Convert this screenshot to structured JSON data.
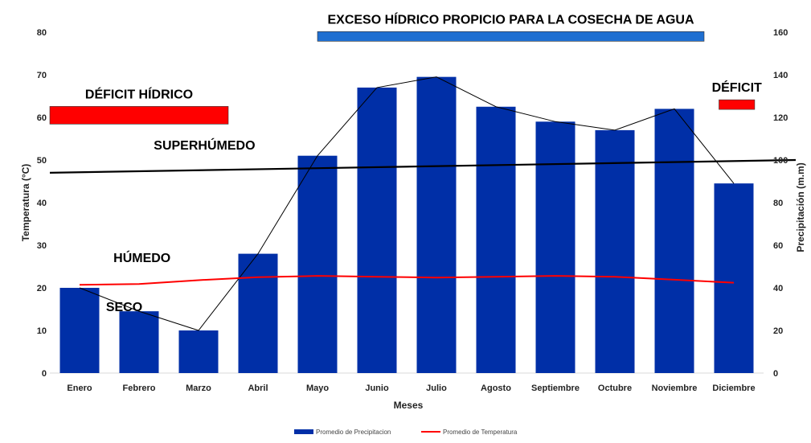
{
  "chart_data": {
    "type": "bar",
    "categories": [
      "Enero",
      "Febrero",
      "Marzo",
      "Abril",
      "Mayo",
      "Junio",
      "Julio",
      "Agosto",
      "Septiembre",
      "Octubre",
      "Noviembre",
      "Diciembre"
    ],
    "series": [
      {
        "name": "Promedio de Precipitacion",
        "kind": "bar",
        "axis": "right",
        "values": [
          40,
          29,
          20,
          56,
          102,
          134,
          139,
          125,
          118,
          114,
          124,
          89
        ]
      },
      {
        "name": "Promedio de Temperatura",
        "kind": "line",
        "axis": "left",
        "values": [
          20.7,
          20.9,
          21.8,
          22.5,
          22.8,
          22.6,
          22.4,
          22.6,
          22.8,
          22.6,
          21.9,
          21.2
        ]
      },
      {
        "name": "",
        "kind": "thin-line",
        "axis": "right",
        "values": [
          40,
          29,
          20,
          56,
          102,
          134,
          139,
          125,
          118,
          114,
          124,
          89
        ]
      }
    ],
    "xlabel": "Meses",
    "ylabel_left": "Temperatura (°C)",
    "ylabel_right": "Precipitación (m.m)",
    "ylim_left": [
      0,
      80
    ],
    "ylim_right": [
      0,
      160
    ],
    "ticks_left": [
      "0",
      "10",
      "20",
      "30",
      "40",
      "50",
      "60",
      "70",
      "80"
    ],
    "ticks_right": [
      "0",
      "20",
      "40",
      "60",
      "80",
      "100",
      "120",
      "140",
      "160"
    ],
    "reference_line": {
      "axis": "right",
      "start": 94,
      "end": 100
    },
    "ranges": [
      {
        "label": "EXCESO HÍDRICO PROPICIO PARA LA COSECHA DE AGUA",
        "color": "#1F6FD1",
        "from": 4.0,
        "to": 10.5,
        "level": 79,
        "level_axis": "left"
      },
      {
        "label": "DÉFICIT HÍDRICO",
        "color": "#FF0000",
        "from": -0.5,
        "to": 2.5,
        "level": 60.5,
        "level_axis": "left"
      },
      {
        "label": "DÉFICIT",
        "color": "#FF0000",
        "from": 10.75,
        "to": 11.35,
        "level": 63,
        "level_axis": "left"
      }
    ],
    "zone_labels": [
      {
        "label": "SUPERHÚMEDO",
        "x": 2.1,
        "y": 52.5
      },
      {
        "label": "HÚMEDO",
        "x": 1.05,
        "y": 26
      },
      {
        "label": "SECO",
        "x": 0.75,
        "y": 14.5
      }
    ],
    "legend_position": "bottom-center",
    "colors": {
      "bar": "#002FA7",
      "temperature": "#FF0000",
      "reference": "#000000",
      "thin": "#000000"
    }
  }
}
